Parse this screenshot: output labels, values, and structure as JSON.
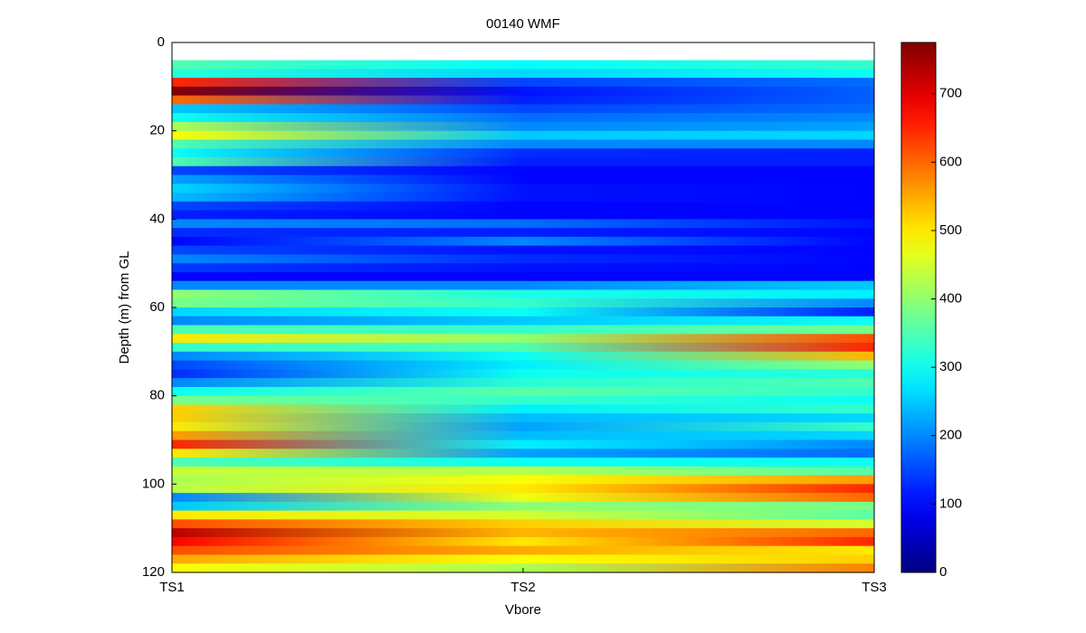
{
  "chart_data": {
    "type": "heatmap",
    "title": "00140 WMF",
    "x_label": "Vbore",
    "y_label": "Depth (m) from GL",
    "x": [
      "TS1",
      "TS2",
      "TS3"
    ],
    "y": [
      5,
      7,
      9,
      11,
      13,
      15,
      17,
      19,
      21,
      23,
      25,
      27,
      29,
      31,
      33,
      35,
      37,
      39,
      41,
      43,
      45,
      47,
      49,
      51,
      53,
      55,
      57,
      59,
      61,
      63,
      65,
      67,
      69,
      71,
      73,
      75,
      77,
      79,
      81,
      83,
      85,
      87,
      89,
      91,
      93,
      95,
      97,
      99,
      101,
      103,
      105,
      107,
      109,
      111,
      113,
      115,
      117,
      119
    ],
    "row_height": 2,
    "z": [
      [
        350,
        290,
        330
      ],
      [
        320,
        260,
        300
      ],
      [
        650,
        150,
        180
      ],
      [
        770,
        110,
        170
      ],
      [
        600,
        120,
        170
      ],
      [
        250,
        150,
        180
      ],
      [
        300,
        180,
        200
      ],
      [
        420,
        200,
        220
      ],
      [
        480,
        250,
        260
      ],
      [
        350,
        200,
        200
      ],
      [
        300,
        130,
        120
      ],
      [
        350,
        120,
        120
      ],
      [
        150,
        100,
        100
      ],
      [
        220,
        100,
        100
      ],
      [
        260,
        110,
        100
      ],
      [
        240,
        110,
        100
      ],
      [
        150,
        100,
        100
      ],
      [
        120,
        100,
        100
      ],
      [
        200,
        180,
        110
      ],
      [
        130,
        120,
        100
      ],
      [
        100,
        200,
        100
      ],
      [
        150,
        110,
        100
      ],
      [
        200,
        130,
        100
      ],
      [
        140,
        110,
        100
      ],
      [
        100,
        100,
        100
      ],
      [
        200,
        200,
        250
      ],
      [
        400,
        310,
        280
      ],
      [
        380,
        330,
        200
      ],
      [
        260,
        300,
        120
      ],
      [
        200,
        250,
        300
      ],
      [
        350,
        330,
        380
      ],
      [
        500,
        400,
        620
      ],
      [
        330,
        350,
        650
      ],
      [
        200,
        300,
        540
      ],
      [
        150,
        280,
        400
      ],
      [
        130,
        300,
        320
      ],
      [
        200,
        320,
        350
      ],
      [
        300,
        360,
        330
      ],
      [
        380,
        330,
        300
      ],
      [
        520,
        280,
        330
      ],
      [
        520,
        240,
        260
      ],
      [
        500,
        220,
        330
      ],
      [
        560,
        240,
        260
      ],
      [
        650,
        280,
        200
      ],
      [
        500,
        220,
        180
      ],
      [
        350,
        300,
        300
      ],
      [
        440,
        430,
        350
      ],
      [
        420,
        480,
        560
      ],
      [
        430,
        500,
        650
      ],
      [
        200,
        470,
        600
      ],
      [
        250,
        400,
        380
      ],
      [
        500,
        450,
        360
      ],
      [
        620,
        520,
        450
      ],
      [
        730,
        540,
        600
      ],
      [
        680,
        500,
        650
      ],
      [
        620,
        550,
        500
      ],
      [
        550,
        480,
        520
      ],
      [
        480,
        420,
        580
      ]
    ],
    "ylim": [
      0,
      120
    ],
    "yticks": [
      0,
      20,
      40,
      60,
      80,
      100,
      120
    ],
    "zlim": [
      0,
      775
    ],
    "zticks": [
      0,
      100,
      200,
      300,
      400,
      500,
      600,
      700
    ],
    "colormap": "jet"
  }
}
